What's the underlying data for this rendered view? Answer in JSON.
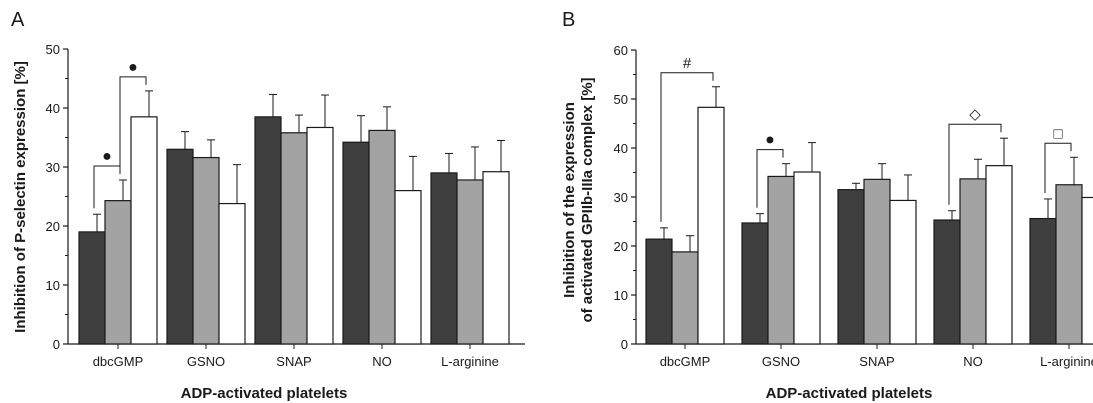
{
  "figure": {
    "colors": {
      "series1": "#3f3f3f",
      "series2": "#a3a3a3",
      "series3": "#ffffff",
      "stroke": "#1a1a1a"
    }
  },
  "chart_data": [
    {
      "type": "bar",
      "panel_label": "A",
      "title": "",
      "xlabel": "ADP-activated platelets",
      "ylabel": "Inhibition of P-selectin expression [%]",
      "ylim": [
        0,
        50
      ],
      "yticks": [
        "0",
        "10",
        "20",
        "30",
        "40",
        "50"
      ],
      "ytick_values": [
        0,
        10,
        20,
        30,
        40,
        50
      ],
      "categories": [
        "dbcGMP",
        "GSNO",
        "SNAP",
        "NO",
        "L-arginine"
      ],
      "grid": false,
      "legend": "none",
      "series": [
        {
          "values": [
            19,
            33,
            38.5,
            34.2,
            29
          ],
          "errors": [
            3,
            3,
            3.8,
            4.5,
            3.3
          ]
        },
        {
          "values": [
            24.3,
            31.6,
            35.8,
            36.2,
            27.8
          ],
          "errors": [
            3.5,
            3,
            3,
            4,
            5.6
          ]
        },
        {
          "values": [
            38.5,
            23.8,
            36.7,
            26,
            29.2
          ],
          "errors": [
            4.4,
            6.6,
            5.5,
            5.8,
            5.3
          ]
        }
      ],
      "annotations": [
        {
          "symbol": "●",
          "category": "dbcGMP",
          "from_series": 1,
          "to_series": 2
        },
        {
          "symbol": "●",
          "category": "dbcGMP",
          "from_series": 2,
          "to_series": 3
        }
      ]
    },
    {
      "type": "bar",
      "panel_label": "B",
      "title": "",
      "xlabel": "ADP-activated platelets",
      "ylabel": "Inhibition of the expression of activated GPIIb-IIIa complex [%]",
      "ylabel_lines": [
        "Inhibition of the expression",
        "of activated GPIIb-IIIa complex [%]"
      ],
      "ylim": [
        0,
        60
      ],
      "yticks": [
        "0",
        "10",
        "20",
        "30",
        "40",
        "50",
        "60"
      ],
      "ytick_values": [
        0,
        10,
        20,
        30,
        40,
        50,
        60
      ],
      "categories": [
        "dbcGMP",
        "GSNO",
        "SNAP",
        "NO",
        "L-arginine"
      ],
      "grid": false,
      "legend": "none",
      "series": [
        {
          "values": [
            21.4,
            24.7,
            31.5,
            25.3,
            25.6
          ],
          "errors": [
            2.3,
            1.9,
            1.3,
            1.9,
            4
          ]
        },
        {
          "values": [
            18.8,
            34.2,
            33.6,
            33.7,
            32.5
          ],
          "errors": [
            3.3,
            2.6,
            3.2,
            4,
            5.6
          ]
        },
        {
          "values": [
            48.3,
            35.1,
            29.3,
            36.4,
            29.9
          ],
          "errors": [
            4.2,
            6,
            5.2,
            5.6,
            5.4
          ]
        }
      ],
      "annotations": [
        {
          "symbol": "#",
          "category": "dbcGMP",
          "from_series": 1,
          "to_series": 3
        },
        {
          "symbol": "●",
          "category": "GSNO",
          "from_series": 1,
          "to_series": 2
        },
        {
          "symbol": "◇",
          "category": "NO",
          "from_series": 1,
          "to_series": 3
        },
        {
          "symbol": "□",
          "category": "L-arginine",
          "from_series": 1,
          "to_series": 2
        }
      ]
    }
  ]
}
